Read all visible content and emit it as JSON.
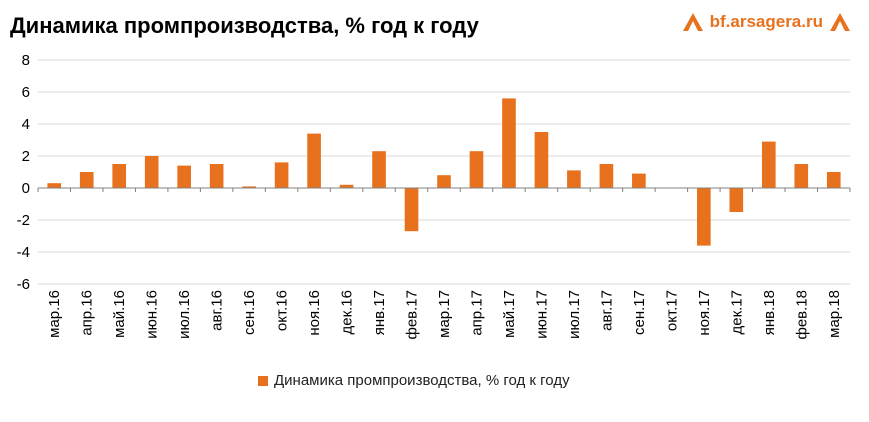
{
  "header": {
    "title": "Динамика промпроизводства, % год к году",
    "logo_text": "bf.arsagera.ru"
  },
  "colors": {
    "bar": "#e8711e",
    "grid": "#d9d9d9",
    "axis": "#808080",
    "text": "#000000"
  },
  "chart_data": {
    "type": "bar",
    "title": "Динамика промпроизводства, % год к году",
    "xlabel": "",
    "ylabel": "",
    "ylim": [
      -6,
      8
    ],
    "yticks": [
      -6,
      -4,
      -2,
      0,
      2,
      4,
      6,
      8
    ],
    "grid": true,
    "legend_position": "bottom",
    "categories": [
      "мар.16",
      "апр.16",
      "май.16",
      "июн.16",
      "июл.16",
      "авг.16",
      "сен.16",
      "окт.16",
      "ноя.16",
      "дек.16",
      "янв.17",
      "фев.17",
      "мар.17",
      "апр.17",
      "май.17",
      "июн.17",
      "июл.17",
      "авг.17",
      "сен.17",
      "окт.17",
      "ноя.17",
      "дек.17",
      "янв.18",
      "фев.18",
      "мар.18"
    ],
    "series": [
      {
        "name": "Динамика промпроизводства, % год к году",
        "values": [
          0.3,
          1.0,
          1.5,
          2.0,
          1.4,
          1.5,
          0.1,
          1.6,
          3.4,
          0.2,
          2.3,
          -2.7,
          0.8,
          2.3,
          5.6,
          3.5,
          1.1,
          1.5,
          0.9,
          0.0,
          -3.6,
          -1.5,
          2.9,
          1.5,
          1.0
        ]
      }
    ]
  }
}
